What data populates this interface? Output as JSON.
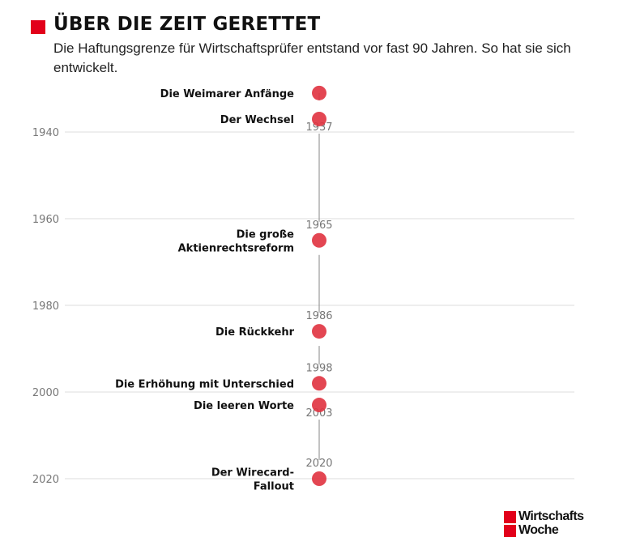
{
  "header": {
    "title": "ÜBER DIE ZEIT GERETTET",
    "subtitle": "Die Haftungsgrenze für Wirtschaftsprüfer entstand vor fast 90 Jahren. So hat sie sich entwickelt."
  },
  "chart_data": {
    "type": "timeline",
    "title": "ÜBER DIE ZEIT GERETTET",
    "axis": {
      "ticks": [
        1940,
        1960,
        1980,
        2000,
        2020
      ],
      "range": [
        1930,
        2020
      ]
    },
    "events": [
      {
        "year": 1931,
        "label": [
          "Die Weimarer Anfänge"
        ],
        "year_label": ""
      },
      {
        "year": 1937,
        "label": [
          "Der Wechsel"
        ],
        "year_label": "1937"
      },
      {
        "year": 1965,
        "label": [
          "Die große",
          "Aktienrechtsreform"
        ],
        "year_label": "1965"
      },
      {
        "year": 1986,
        "label": [
          "Die Rückkehr"
        ],
        "year_label": "1986"
      },
      {
        "year": 1998,
        "label": [
          "Die Erhöhung mit Unterschied"
        ],
        "year_label": "1998"
      },
      {
        "year": 2003,
        "label": [
          "Die leeren Worte"
        ],
        "year_label": "2003"
      },
      {
        "year": 2020,
        "label": [
          "Der Wirecard-",
          "Fallout"
        ],
        "year_label": "2020"
      }
    ],
    "colors": {
      "marker": "#e0323f",
      "grid": "#dddddd",
      "axis_text": "#777777",
      "line": "#999999"
    }
  },
  "logo": {
    "line1": "Wirtschafts",
    "line2": "Woche",
    "color": "#e2001a"
  }
}
